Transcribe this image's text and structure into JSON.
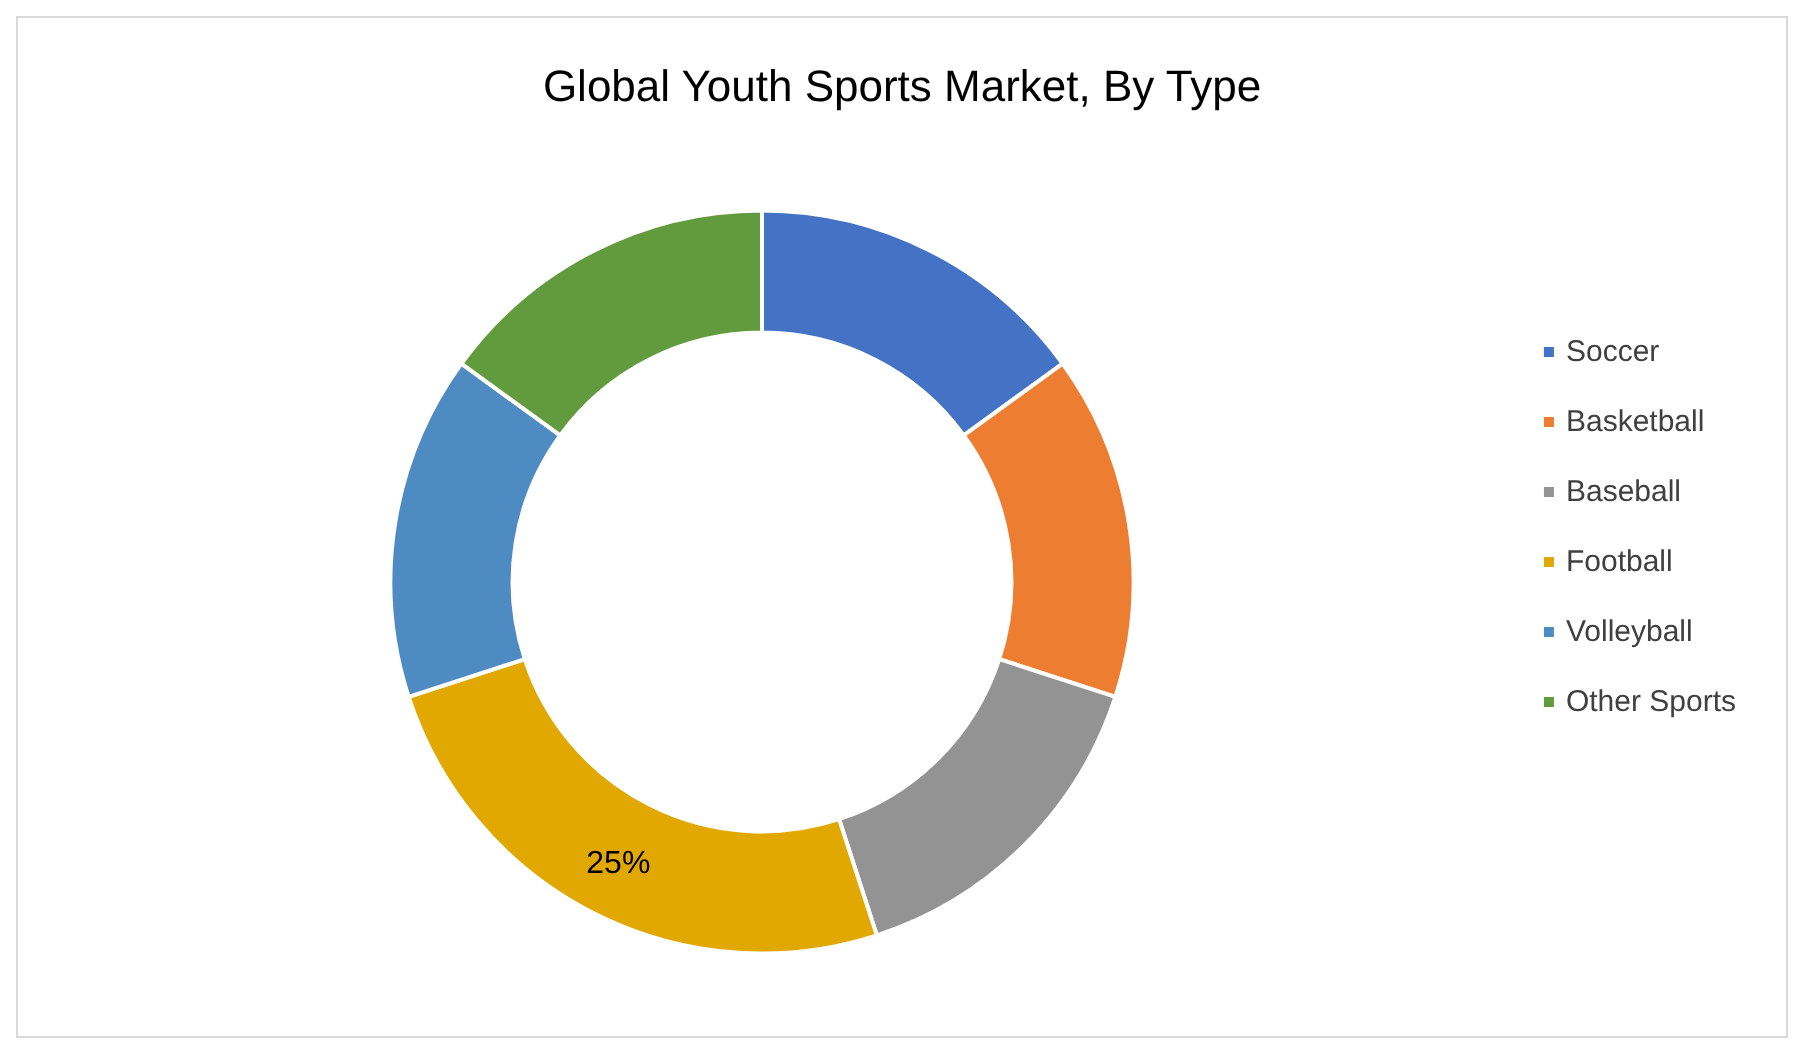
{
  "chart_data": {
    "type": "donut",
    "title": "Global Youth Sports Market, By Type",
    "categories": [
      "Soccer",
      "Basketball",
      "Baseball",
      "Football",
      "Volleyball",
      "Other Sports"
    ],
    "values": [
      15,
      15,
      15,
      25,
      15,
      15
    ],
    "colors": [
      "#4472c4",
      "#ed7d31",
      "#939393",
      "#e0a800",
      "#4e8bc2",
      "#629b3e"
    ],
    "value_labels": [
      null,
      null,
      null,
      "25%",
      null,
      null
    ],
    "legend": "right"
  }
}
